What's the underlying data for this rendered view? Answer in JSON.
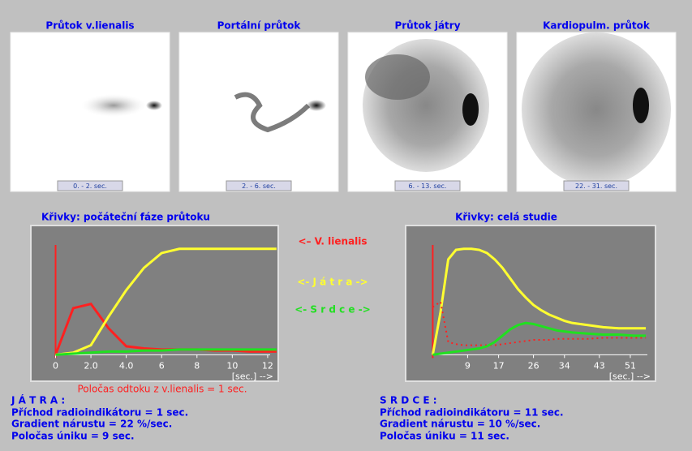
{
  "panels": [
    {
      "title": "Průtok v.lienalis",
      "time": "0. - 2. sec."
    },
    {
      "title": "Portální průtok",
      "time": "2. - 6. sec."
    },
    {
      "title": "Průtok játry",
      "time": "6. - 13. sec."
    },
    {
      "title": "Kardiopulm. průtok",
      "time": "22. - 31. sec."
    }
  ],
  "chart_data": [
    {
      "type": "line",
      "title": "Křivky: počáteční fáze průtoku",
      "x_label": "[sec.] -->",
      "x": [
        0,
        1,
        2,
        3,
        4,
        5,
        6,
        7,
        8,
        9,
        10,
        11,
        12,
        12.5
      ],
      "xlim": [
        -1.4,
        12.6
      ],
      "ylim": [
        -25,
        122
      ],
      "xticks": [
        0,
        {
          "value": 2,
          "label": "2.0"
        },
        {
          "value": 4,
          "label": "4.0"
        },
        6,
        8,
        10,
        12
      ],
      "series": [
        {
          "name": "<– V. lienalis",
          "color": "#ff2020",
          "values": [
            0,
            44,
            48,
            25,
            8,
            6,
            5,
            5,
            5,
            4,
            4,
            3,
            3,
            3
          ]
        },
        {
          "name": "<- J á t r a ->",
          "color": "#ffff30",
          "values": [
            0,
            2,
            9,
            36,
            61,
            82,
            96,
            100,
            100,
            100,
            100,
            100,
            100,
            100
          ]
        },
        {
          "name": "<- S r d c e ->",
          "color": "#20e020",
          "values": [
            0,
            1,
            2,
            3,
            3,
            4,
            4,
            5,
            5,
            5,
            5,
            5,
            5,
            5
          ]
        }
      ],
      "note": "Poločas odtoku z v.lienalis =   1 sec."
    },
    {
      "type": "line",
      "title": "Křivky:  celá studie",
      "x_label": "[sec.] -->",
      "x": [
        0,
        2,
        4,
        6,
        8,
        10,
        12,
        14,
        16,
        18,
        20,
        22,
        24,
        26,
        28,
        30,
        32,
        34,
        36,
        40,
        44,
        48,
        52,
        55
      ],
      "xlim": [
        -7,
        57.5
      ],
      "ylim": [
        -25,
        122
      ],
      "xticks": [
        9,
        17,
        26,
        34,
        43,
        51
      ],
      "series": [
        {
          "color": "#ffff30",
          "values": [
            0,
            40,
            90,
            99,
            100,
            100,
            99,
            96,
            90,
            82,
            72,
            62,
            54,
            47,
            42,
            38,
            35,
            32,
            30,
            28,
            26,
            25,
            25,
            25
          ]
        },
        {
          "color": "#ff2020",
          "dash": "dotted",
          "values": [
            45,
            50,
            12,
            10,
            9,
            9,
            9,
            9,
            9,
            10,
            11,
            12,
            13,
            14,
            14,
            14,
            15,
            15,
            15,
            15,
            16,
            16,
            16,
            16
          ]
        },
        {
          "color": "#20e020",
          "values": [
            0,
            1,
            2,
            3,
            4,
            5,
            6,
            8,
            12,
            18,
            24,
            28,
            30,
            29,
            27,
            25,
            23,
            22,
            21,
            20,
            19,
            19,
            18,
            18
          ]
        }
      ]
    }
  ],
  "results": [
    {
      "title": "J Á T R A :",
      "lines": [
        "Příchod radioindikátoru = 1 sec.",
        "Gradient nárustu = 22 %/sec.",
        "Poločas úniku = 9 sec."
      ]
    },
    {
      "title": "S R D C E :",
      "lines": [
        "Příchod radioindikátoru = 11 sec.",
        "Gradient nárustu = 10 %/sec.",
        "Poločas úniku = 11 sec."
      ]
    }
  ]
}
